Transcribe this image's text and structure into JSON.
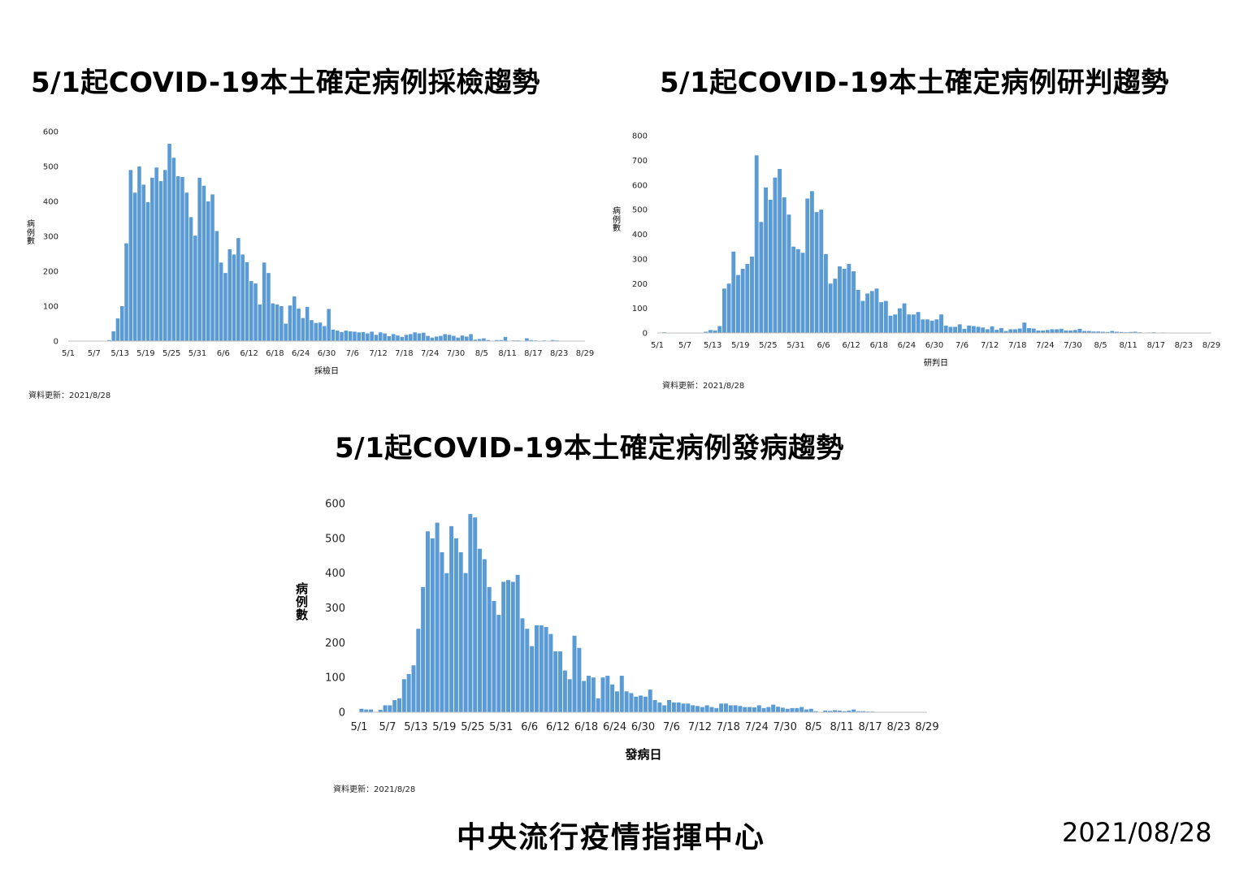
{
  "footer": {
    "org": "中央流行疫情指揮中心",
    "date": "2021/08/28"
  },
  "colors": {
    "bar": "#5b9bd5",
    "axis": "#bfbfbf"
  },
  "chart_data": [
    {
      "type": "bar",
      "title": "5/1起COVID-19本土確定病例採檢趨勢",
      "xlabel": "採檢日",
      "ylabel": "病例數",
      "update_text": "資料更新：2021/8/28",
      "ylim": [
        0,
        600
      ],
      "yticks": [
        0,
        100,
        200,
        300,
        400,
        500,
        600
      ],
      "ytick_labels": [
        "0",
        "100",
        "200",
        "300",
        "400",
        "500",
        "600"
      ],
      "xtick_labels": [
        "5/1",
        "5/7",
        "5/13",
        "5/19",
        "5/25",
        "5/31",
        "6/6",
        "6/12",
        "6/18",
        "6/24",
        "6/30",
        "7/6",
        "7/12",
        "7/18",
        "7/24",
        "7/30",
        "8/5",
        "8/11",
        "8/17",
        "8/23",
        "8/29"
      ],
      "categories_note": "daily bars, 5/1 to 8/28",
      "values": [
        0,
        0,
        0,
        0,
        0,
        0,
        0,
        0,
        1,
        3,
        28,
        65,
        100,
        280,
        490,
        425,
        500,
        448,
        398,
        468,
        497,
        458,
        490,
        565,
        525,
        472,
        470,
        425,
        355,
        302,
        468,
        445,
        400,
        420,
        315,
        225,
        195,
        263,
        248,
        295,
        248,
        226,
        172,
        165,
        105,
        225,
        195,
        108,
        105,
        100,
        50,
        102,
        128,
        93,
        66,
        98,
        60,
        52,
        53,
        43,
        92,
        33,
        30,
        26,
        30,
        28,
        27,
        25,
        26,
        22,
        27,
        18,
        25,
        22,
        14,
        20,
        16,
        12,
        18,
        20,
        25,
        22,
        24,
        15,
        10,
        13,
        15,
        20,
        18,
        15,
        10,
        16,
        13,
        20,
        4,
        6,
        8,
        3,
        1,
        3,
        3,
        12,
        1,
        2,
        2,
        0,
        8,
        3,
        2,
        1,
        2,
        1,
        3,
        2,
        1,
        0,
        0,
        0,
        0,
        0
      ]
    },
    {
      "type": "bar",
      "title": "5/1起COVID-19本土確定病例研判趨勢",
      "xlabel": "研判日",
      "ylabel": "病例數",
      "update_text": "資料更新：2021/8/28",
      "ylim": [
        0,
        800
      ],
      "yticks": [
        0,
        100,
        200,
        300,
        400,
        500,
        600,
        700,
        800
      ],
      "ytick_labels": [
        "0",
        "100",
        "200",
        "300",
        "400",
        "500",
        "600",
        "700",
        "800"
      ],
      "xtick_labels": [
        "5/1",
        "5/7",
        "5/13",
        "5/19",
        "5/25",
        "5/31",
        "6/6",
        "6/12",
        "6/18",
        "6/24",
        "6/30",
        "7/6",
        "7/12",
        "7/18",
        "7/24",
        "7/30",
        "8/5",
        "8/11",
        "8/17",
        "8/23",
        "8/29"
      ],
      "categories_note": "daily bars, 5/1 to 8/28",
      "values": [
        0,
        3,
        0,
        0,
        0,
        0,
        0,
        0,
        0,
        0,
        5,
        12,
        10,
        28,
        180,
        200,
        330,
        235,
        260,
        280,
        310,
        720,
        450,
        590,
        540,
        630,
        665,
        550,
        480,
        350,
        340,
        325,
        545,
        575,
        490,
        500,
        320,
        200,
        220,
        270,
        260,
        280,
        250,
        175,
        130,
        160,
        170,
        180,
        125,
        130,
        70,
        75,
        100,
        120,
        75,
        75,
        85,
        55,
        55,
        50,
        55,
        75,
        30,
        25,
        25,
        35,
        17,
        30,
        28,
        25,
        22,
        15,
        27,
        13,
        20,
        8,
        15,
        15,
        18,
        42,
        20,
        18,
        10,
        10,
        12,
        15,
        15,
        17,
        10,
        10,
        12,
        17,
        8,
        8,
        6,
        6,
        5,
        4,
        8,
        5,
        4,
        3,
        4,
        5,
        3,
        1,
        2,
        3,
        1,
        2,
        0,
        0,
        0,
        0,
        0,
        0,
        0,
        0,
        0,
        0
      ]
    },
    {
      "type": "bar",
      "title": "5/1起COVID-19本土確定病例發病趨勢",
      "xlabel": "發病日",
      "ylabel": "病例數",
      "update_text": "資料更新：2021/8/28",
      "ylim": [
        0,
        600
      ],
      "yticks": [
        0,
        100,
        200,
        300,
        400,
        500,
        600
      ],
      "ytick_labels": [
        "0",
        "100",
        "200",
        "300",
        "400",
        "500",
        "600"
      ],
      "xtick_labels": [
        "5/1",
        "5/7",
        "5/13",
        "5/19",
        "5/25",
        "5/31",
        "6/6",
        "6/12",
        "6/18",
        "6/24",
        "6/30",
        "7/6",
        "7/12",
        "7/18",
        "7/24",
        "7/30",
        "8/5",
        "8/11",
        "8/17",
        "8/23",
        "8/29"
      ],
      "categories_note": "daily bars, 5/1 to 8/28",
      "values": [
        10,
        8,
        8,
        0,
        7,
        20,
        20,
        35,
        40,
        95,
        110,
        135,
        240,
        360,
        520,
        500,
        545,
        460,
        400,
        535,
        500,
        460,
        400,
        570,
        560,
        470,
        440,
        360,
        320,
        280,
        375,
        380,
        375,
        395,
        270,
        240,
        190,
        250,
        250,
        245,
        225,
        175,
        175,
        120,
        95,
        220,
        185,
        90,
        105,
        100,
        40,
        100,
        105,
        80,
        60,
        105,
        60,
        55,
        45,
        48,
        45,
        65,
        35,
        28,
        20,
        35,
        28,
        28,
        25,
        25,
        20,
        18,
        15,
        20,
        15,
        12,
        25,
        25,
        20,
        20,
        18,
        15,
        15,
        14,
        20,
        12,
        15,
        22,
        16,
        13,
        10,
        12,
        12,
        15,
        8,
        10,
        3,
        0,
        5,
        4,
        6,
        5,
        3,
        5,
        8,
        3,
        3,
        2,
        2,
        1,
        1,
        0,
        0,
        0,
        0,
        0,
        0,
        0,
        0,
        0
      ]
    }
  ]
}
